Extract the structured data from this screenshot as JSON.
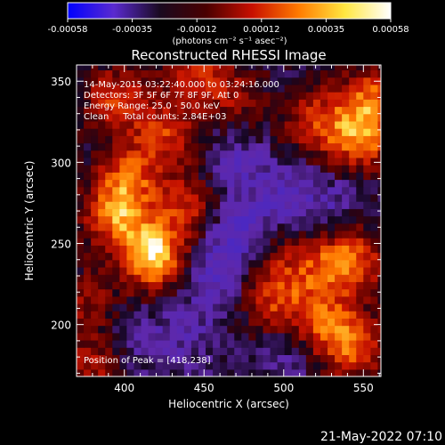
{
  "colorbar": {
    "ticks": [
      "-0.00058",
      "-0.00035",
      "-0.00012",
      "0.00012",
      "0.00035",
      "0.00058"
    ],
    "unit_label": "(photons cm⁻² s⁻¹ asec⁻²)",
    "colors": [
      "#0000ff",
      "#5a2ad0",
      "#1a0a20",
      "#4a0000",
      "#c81000",
      "#ff7a00",
      "#ffe640",
      "#ffffff"
    ]
  },
  "footer_timestamp": "21-May-2022 07:10",
  "chart_data": {
    "type": "heatmap",
    "title": "Reconstructed RHESSI Image",
    "xlabel": "Heliocentric X (arcsec)",
    "ylabel": "Heliocentric Y (arcsec)",
    "xlim": [
      370,
      561
    ],
    "ylim": [
      168,
      360
    ],
    "xticks": [
      400,
      450,
      500,
      550
    ],
    "yticks": [
      200,
      250,
      300,
      350
    ],
    "value_range": [
      -0.00058,
      0.00058
    ],
    "info_lines": [
      "14-May-2015 03:22:40.000 to 03:24:16.000",
      "Detectors: 3F 5F 6F 7F 8F 9F, Att 0",
      "Energy Range: 25.0 - 50.0 keV",
      "Clean     Total counts: 2.84E+03"
    ],
    "peak_label": "Position of Peak = [418,238]",
    "peak": [
      418,
      238
    ],
    "bright_regions": [
      {
        "x": 418,
        "y": 243,
        "value": 0.00058
      },
      {
        "x": 395,
        "y": 268,
        "value": 0.00042
      },
      {
        "x": 402,
        "y": 292,
        "value": 0.00032
      },
      {
        "x": 438,
        "y": 275,
        "value": 0.00028
      },
      {
        "x": 425,
        "y": 318,
        "value": 0.0003
      },
      {
        "x": 395,
        "y": 340,
        "value": 0.0003
      },
      {
        "x": 445,
        "y": 355,
        "value": 0.00028
      },
      {
        "x": 548,
        "y": 315,
        "value": 0.0004
      },
      {
        "x": 555,
        "y": 340,
        "value": 0.00035
      },
      {
        "x": 520,
        "y": 325,
        "value": 0.0003
      },
      {
        "x": 543,
        "y": 240,
        "value": 0.00038
      },
      {
        "x": 520,
        "y": 233,
        "value": 0.00025
      },
      {
        "x": 495,
        "y": 215,
        "value": 0.0003
      },
      {
        "x": 528,
        "y": 200,
        "value": 0.00032
      },
      {
        "x": 545,
        "y": 185,
        "value": 0.0003
      },
      {
        "x": 490,
        "y": 245,
        "value": 0.00018
      },
      {
        "x": 380,
        "y": 175,
        "value": 0.00022
      },
      {
        "x": 470,
        "y": 340,
        "value": 0.00018
      },
      {
        "x": 376,
        "y": 215,
        "value": 0.00018
      }
    ],
    "dark_regions": [
      {
        "x": 475,
        "y": 255,
        "value": -0.00028
      },
      {
        "x": 455,
        "y": 230,
        "value": -0.00018
      },
      {
        "x": 470,
        "y": 300,
        "value": -0.00015
      },
      {
        "x": 500,
        "y": 280,
        "value": -0.00016
      },
      {
        "x": 440,
        "y": 195,
        "value": -0.00012
      },
      {
        "x": 410,
        "y": 190,
        "value": -0.0001
      },
      {
        "x": 530,
        "y": 275,
        "value": -0.00012
      },
      {
        "x": 500,
        "y": 180,
        "value": -0.0001
      }
    ]
  }
}
